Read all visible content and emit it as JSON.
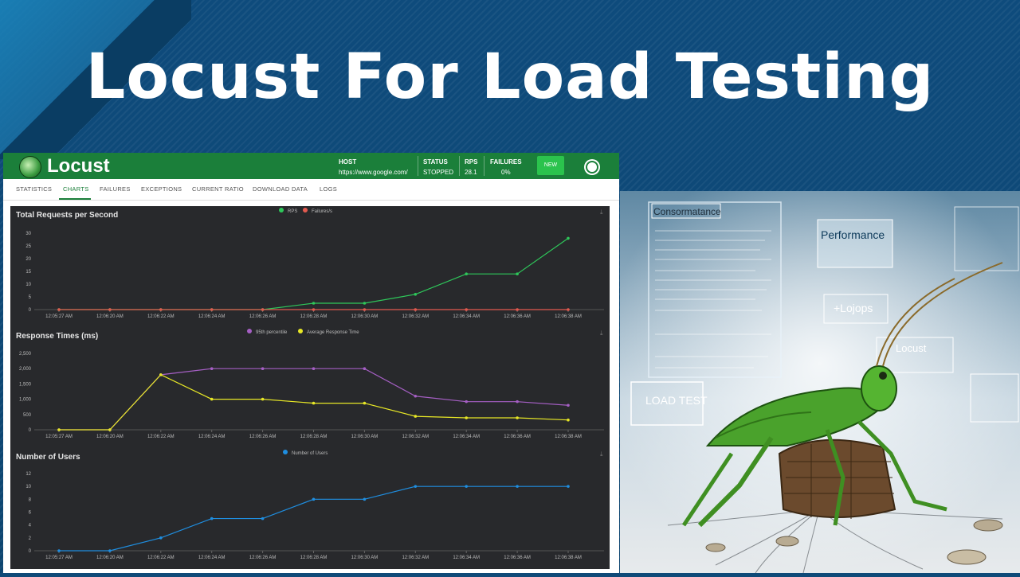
{
  "banner": {
    "title": "Locust For Load Testing"
  },
  "app": {
    "name": "Locust",
    "host_label": "HOST",
    "host": "https://www.google.com/",
    "status_label": "STATUS",
    "status": "STOPPED",
    "rps_label": "RPS",
    "rps": "28.1",
    "failures_label": "FAILURES",
    "failures": "0%",
    "new_button": "NEW"
  },
  "tabs": [
    "STATISTICS",
    "CHARTS",
    "FAILURES",
    "EXCEPTIONS",
    "CURRENT RATIO",
    "DOWNLOAD DATA",
    "LOGS"
  ],
  "colors": {
    "green": "#1b7f3a",
    "rps": "#2ec75a",
    "fail": "#e35a4f",
    "p95": "#a55fc4",
    "avg": "#e8e826",
    "users": "#1f8ee0"
  },
  "chart_data": [
    {
      "type": "line",
      "title": "Total Requests per Second",
      "x": [
        "12:05:27 AM",
        "12:06:20 AM",
        "12:06:22 AM",
        "12:06:24 AM",
        "12:06:26 AM",
        "12:06:28 AM",
        "12:06:30 AM",
        "12:06:32 AM",
        "12:06:34 AM",
        "12:06:36 AM",
        "12:06:38 AM"
      ],
      "ylim": [
        0,
        30
      ],
      "yticks": [
        "0",
        "5",
        "10",
        "15",
        "20",
        "25",
        "30"
      ],
      "series": [
        {
          "name": "RPS",
          "values": [
            0,
            0,
            0,
            0,
            0,
            2.5,
            2.5,
            6,
            14,
            14,
            28
          ]
        },
        {
          "name": "Failures/s",
          "values": [
            0,
            0,
            0,
            0,
            0,
            0,
            0,
            0,
            0,
            0,
            0
          ]
        }
      ]
    },
    {
      "type": "line",
      "title": "Response Times (ms)",
      "x": [
        "12:05:27 AM",
        "12:06:20 AM",
        "12:06:22 AM",
        "12:06:24 AM",
        "12:06:26 AM",
        "12:06:28 AM",
        "12:06:30 AM",
        "12:06:32 AM",
        "12:06:34 AM",
        "12:06:36 AM",
        "12:06:38 AM"
      ],
      "ylim": [
        0,
        2500
      ],
      "yticks": [
        "0",
        "500",
        "1,000",
        "1,500",
        "2,000",
        "2,500"
      ],
      "series": [
        {
          "name": "95th percentile",
          "values": [
            0,
            0,
            1800,
            2000,
            2000,
            2000,
            2000,
            1100,
            920,
            920,
            800
          ]
        },
        {
          "name": "Average Response Time",
          "values": [
            0,
            0,
            1800,
            1000,
            1000,
            870,
            870,
            440,
            390,
            390,
            320
          ]
        }
      ]
    },
    {
      "type": "line",
      "title": "Number of Users",
      "x": [
        "12:05:27 AM",
        "12:06:20 AM",
        "12:06:22 AM",
        "12:06:24 AM",
        "12:06:26 AM",
        "12:06:28 AM",
        "12:06:30 AM",
        "12:06:32 AM",
        "12:06:34 AM",
        "12:06:36 AM",
        "12:06:38 AM"
      ],
      "ylim": [
        0,
        12
      ],
      "yticks": [
        "0",
        "2",
        "4",
        "6",
        "8",
        "10",
        "12"
      ],
      "series": [
        {
          "name": "Number of Users",
          "values": [
            0,
            0,
            2,
            5,
            5,
            8,
            8,
            10,
            10,
            10,
            10
          ]
        }
      ]
    }
  ],
  "artwork": {
    "texts": [
      "Consormatance",
      "Performance",
      "LOAD TEST",
      "Locust"
    ]
  }
}
